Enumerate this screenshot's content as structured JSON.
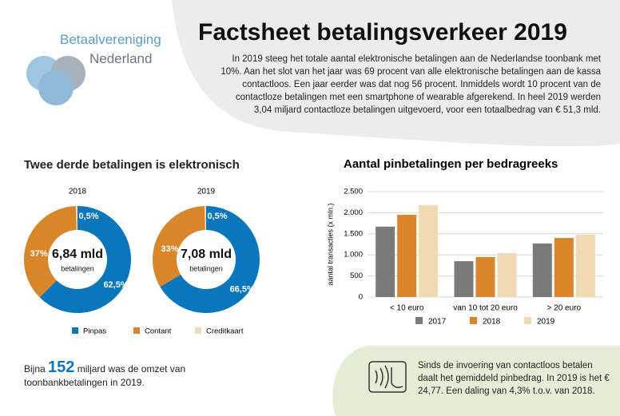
{
  "header": {
    "logo_line1": "Betaalvereniging",
    "logo_line2": "Nederland",
    "title": "Factsheet betalingsverkeer 2019",
    "intro": "In 2019 steeg het totale aantal elektronische betalingen aan de Nederlandse toonbank met 10%. Aan het slot van het jaar was 69 procent van alle elektronische betalingen aan de kassa contactloos. Een jaar eerder was dat nog 56 procent. Inmiddels wordt 10 procent van de contactloze betalingen met een smartphone of wearable afgerekend. In heel 2019 werden 3,04 miljard contactloze betalingen uitgevoerd, voor een totaalbedrag van € 51,3 mld."
  },
  "donut_section": {
    "title": "Twee derde betalingen is elektronisch"
  },
  "chart_data": [
    {
      "type": "donut",
      "title": "2018",
      "categories": [
        "Pinpas",
        "Contant",
        "Creditkaart"
      ],
      "colors": [
        "#0a77bd",
        "#d9862a",
        "#f0dcbc"
      ],
      "values": [
        62.5,
        37,
        0.5
      ],
      "value_labels": [
        "62,5%",
        "37%",
        "0,5%"
      ],
      "center_value": "6,84 mld",
      "center_label": "betalingen"
    },
    {
      "type": "donut",
      "title": "2019",
      "categories": [
        "Pinpas",
        "Contant",
        "Creditkaart"
      ],
      "colors": [
        "#0a77bd",
        "#d9862a",
        "#f0dcbc"
      ],
      "values": [
        66.5,
        33,
        0.5
      ],
      "value_labels": [
        "66,5%",
        "33%",
        "0,5%"
      ],
      "center_value": "7,08 mld",
      "center_label": "betalingen"
    },
    {
      "type": "bar",
      "title": "Aantal pinbetalingen per bedragreeks",
      "y_label": "aantal transacties (x mln.)",
      "categories": [
        "< 10 euro",
        "van 10 tot 20 euro",
        "> 20 euro"
      ],
      "series": [
        {
          "name": "2017",
          "color": "#7a7a7a",
          "values": [
            1670,
            850,
            1270
          ]
        },
        {
          "name": "2018",
          "color": "#d9862a",
          "values": [
            1950,
            950,
            1400
          ]
        },
        {
          "name": "2019",
          "color": "#f0d9b5",
          "values": [
            2180,
            1040,
            1480
          ]
        }
      ],
      "ylim": [
        0,
        2500
      ],
      "yticks": [
        0,
        500,
        {
          "value": 1000,
          "label": "1.000"
        },
        {
          "value": 1500,
          "label": "1.500"
        },
        {
          "value": 2000,
          "label": "2.000"
        },
        {
          "value": 2500,
          "label": "2.500"
        }
      ],
      "grid": true
    }
  ],
  "footer": {
    "prefix": "Bijna",
    "number": "152",
    "text": "miljard was de omzet van toonbankbetalingen in 2019.",
    "note": "Sinds de invoering van contactloos betalen daalt het gemiddeld pinbedrag. In 2019 is het € 24,77. Een daling van 4,3% t.o.v. van 2018."
  }
}
